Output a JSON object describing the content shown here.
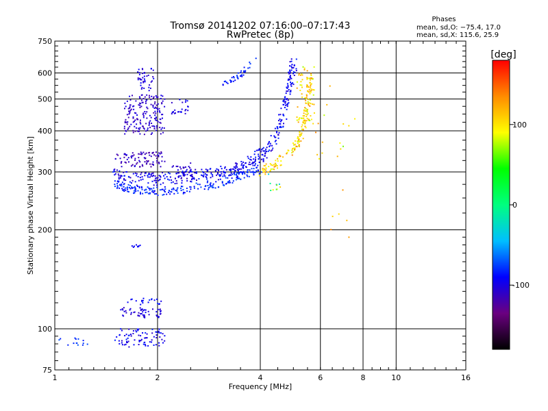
{
  "chart_data": {
    "type": "scatter",
    "title": "Tromsø 20141202 07:16:00–07:17:43",
    "subtitle": "RwPretec (8p)",
    "xlabel": "Frequency [MHz]",
    "ylabel": "Stationary phase Virtual Height [km]",
    "x_scale": "log",
    "y_scale": "log",
    "xlim": [
      1,
      16
    ],
    "ylim": [
      75,
      750
    ],
    "x_ticks": [
      1,
      2,
      4,
      6,
      8,
      10,
      16
    ],
    "x_gridlines": [
      2,
      4,
      6,
      8,
      10
    ],
    "y_ticks": [
      75,
      100,
      200,
      300,
      400,
      500,
      600,
      750
    ],
    "y_gridlines": [
      100,
      200,
      300,
      400,
      500,
      600
    ],
    "grid": true,
    "phase_stats": {
      "heading": "Phases",
      "line1": "mean, sd,O: −75.4, 17.0",
      "line2": "mean, sd,X: 115.6, 25.9"
    },
    "colorbar": {
      "label": "[deg]",
      "range": [
        -180,
        180
      ],
      "ticks": [
        100,
        0,
        -100
      ],
      "colors": [
        "#000000",
        "#6a0080",
        "#0000ff",
        "#00bfff",
        "#00ff7f",
        "#00ff00",
        "#ffff00",
        "#ff8c00",
        "#ff0000"
      ]
    },
    "series": [
      {
        "type": "curve",
        "points": [
          [
            1.5,
            295
          ],
          [
            1.6,
            288
          ],
          [
            1.8,
            285
          ],
          [
            2.0,
            285
          ],
          [
            2.3,
            288
          ],
          [
            2.7,
            292
          ],
          [
            3.0,
            297
          ],
          [
            3.3,
            303
          ],
          [
            3.6,
            313
          ],
          [
            3.9,
            328
          ],
          [
            4.2,
            352
          ],
          [
            4.5,
            393
          ],
          [
            4.7,
            450
          ],
          [
            4.85,
            520
          ],
          [
            4.95,
            600
          ],
          [
            5.0,
            640
          ]
        ],
        "spread": 0.045,
        "phase": [
          -110,
          -80
        ],
        "count": 420
      },
      {
        "type": "curve",
        "points": [
          [
            1.5,
            275
          ],
          [
            1.7,
            265
          ],
          [
            2.0,
            262
          ],
          [
            2.4,
            265
          ],
          [
            2.8,
            272
          ],
          [
            3.2,
            282
          ],
          [
            3.6,
            295
          ],
          [
            4.0,
            305
          ]
        ],
        "spread": 0.03,
        "phase": [
          -95,
          -70
        ],
        "count": 220
      },
      {
        "type": "curve",
        "points": [
          [
            4.0,
            300
          ],
          [
            4.4,
            315
          ],
          [
            4.8,
            335
          ],
          [
            5.1,
            360
          ],
          [
            5.3,
            395
          ],
          [
            5.45,
            440
          ],
          [
            5.55,
            520
          ],
          [
            5.6,
            600
          ]
        ],
        "spread": 0.035,
        "phase": [
          80,
          140
        ],
        "count": 160
      },
      {
        "type": "cluster",
        "x": [
          1.6,
          2.1
        ],
        "y": [
          390,
          520
        ],
        "phase": [
          -120,
          -95
        ],
        "count": 180
      },
      {
        "type": "cluster",
        "x": [
          1.75,
          1.95
        ],
        "y": [
          520,
          620
        ],
        "phase": [
          -115,
          -90
        ],
        "count": 40
      },
      {
        "type": "cluster",
        "x": [
          1.5,
          2.1
        ],
        "y": [
          310,
          345
        ],
        "phase": [
          -125,
          -100
        ],
        "count": 90
      },
      {
        "type": "cluster",
        "x": [
          2.2,
          2.5
        ],
        "y": [
          450,
          500
        ],
        "phase": [
          -110,
          -90
        ],
        "count": 25
      },
      {
        "type": "cluster",
        "x": [
          1.5,
          2.1
        ],
        "y": [
          88,
          100
        ],
        "phase": [
          -110,
          -80
        ],
        "count": 80
      },
      {
        "type": "cluster",
        "x": [
          1.55,
          2.05
        ],
        "y": [
          108,
          116
        ],
        "phase": [
          -115,
          -90
        ],
        "count": 55
      },
      {
        "type": "cluster",
        "x": [
          1.6,
          2.05
        ],
        "y": [
          118,
          125
        ],
        "phase": [
          -100,
          -80
        ],
        "count": 20
      },
      {
        "type": "cluster",
        "x": [
          1.68,
          1.78
        ],
        "y": [
          177,
          180
        ],
        "phase": [
          -100,
          -85
        ],
        "count": 10
      },
      {
        "type": "cluster",
        "x": [
          1.02,
          1.25
        ],
        "y": [
          89,
          94
        ],
        "phase": [
          -85,
          -70
        ],
        "count": 14
      },
      {
        "type": "cluster",
        "x": [
          2.2,
          2.6
        ],
        "y": [
          285,
          320
        ],
        "phase": [
          -115,
          -95
        ],
        "count": 40
      },
      {
        "type": "curve",
        "points": [
          [
            3.1,
            560
          ],
          [
            3.4,
            580
          ],
          [
            3.6,
            610
          ],
          [
            3.85,
            655
          ]
        ],
        "spread": 0.02,
        "phase": [
          -95,
          -75
        ],
        "count": 40
      },
      {
        "type": "cluster",
        "x": [
          5.1,
          5.8
        ],
        "y": [
          420,
          640
        ],
        "phase": [
          70,
          130
        ],
        "count": 60
      },
      {
        "type": "cluster",
        "x": [
          5.8,
          7.8
        ],
        "y": [
          180,
          580
        ],
        "phase": [
          60,
          140
        ],
        "count": 22
      },
      {
        "type": "cluster",
        "x": [
          4.1,
          4.6
        ],
        "y": [
          255,
          300
        ],
        "phase": [
          -60,
          120
        ],
        "count": 10
      }
    ]
  }
}
